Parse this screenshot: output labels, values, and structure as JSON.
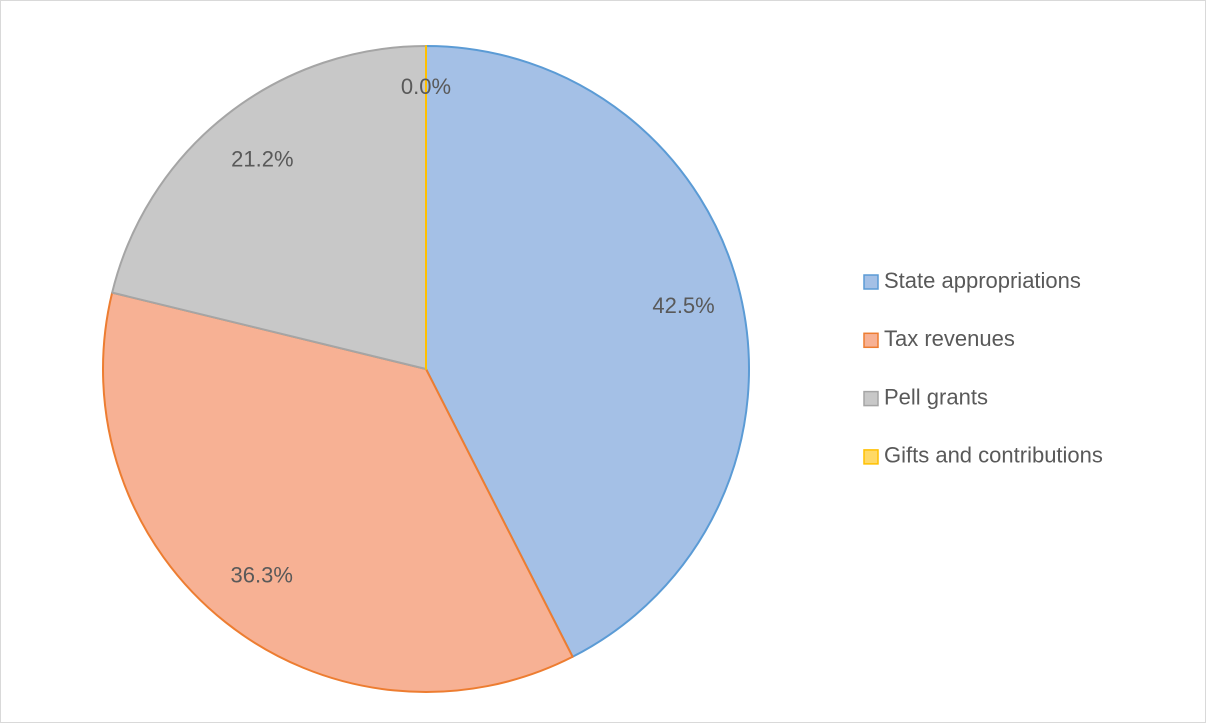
{
  "chart_data": {
    "type": "pie",
    "categories": [
      "State appropriations",
      "Tax revenues",
      "Pell grants",
      "Gifts and contributions"
    ],
    "values": [
      42.5,
      36.3,
      21.2,
      0.0
    ],
    "value_labels": [
      "42.5%",
      "36.3%",
      "21.2%",
      "0.0%"
    ],
    "colors": [
      "#a4c0e6",
      "#f7b194",
      "#c8c8c8",
      "#ffd966"
    ],
    "edge_colors": [
      "#5b9bd5",
      "#ed7d31",
      "#a5a5a5",
      "#ffc000"
    ],
    "legend": "right"
  }
}
